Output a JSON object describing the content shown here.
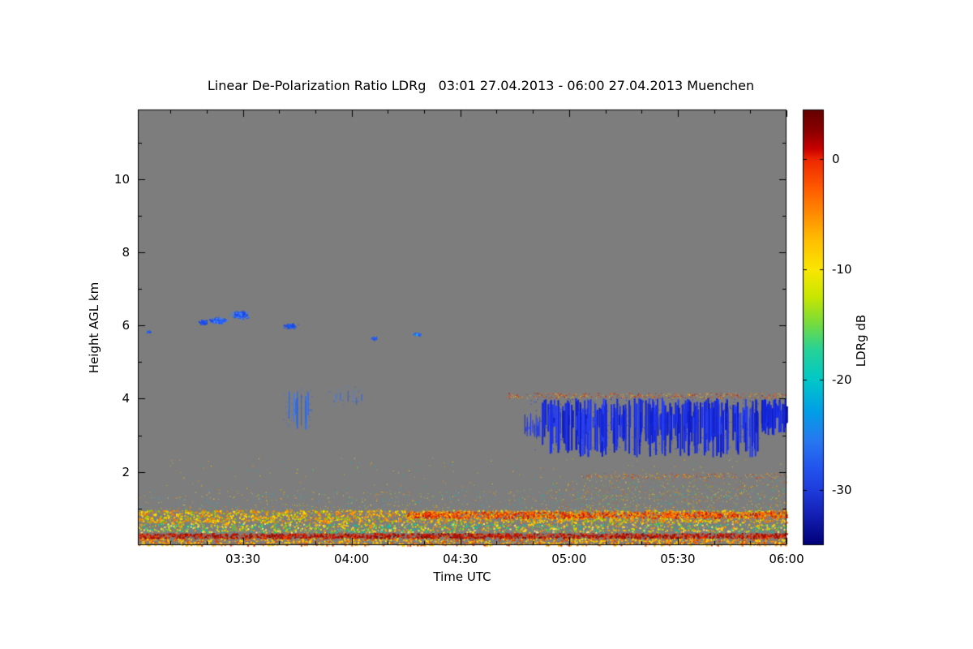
{
  "page": {
    "background": "#ffffff"
  },
  "chart_data": {
    "type": "heatmap",
    "title": "Linear De-Polarization Ratio LDRg   03:01 27.04.2013 - 06:00 27.04.2013 Muenchen",
    "xlabel": "Time UTC",
    "ylabel": "Height AGL km",
    "colorbar_label": "LDRg dB",
    "background_color": "#7d7d7d",
    "frame_color": "#000000",
    "x_axis": {
      "start_minutes": 181,
      "end_minutes": 360,
      "minor_step_minutes": 10,
      "ticks": [
        {
          "minutes": 210,
          "label": "03:30"
        },
        {
          "minutes": 240,
          "label": "04:00"
        },
        {
          "minutes": 270,
          "label": "04:30"
        },
        {
          "minutes": 300,
          "label": "05:00"
        },
        {
          "minutes": 330,
          "label": "05:30"
        },
        {
          "minutes": 360,
          "label": "06:00"
        }
      ]
    },
    "y_axis": {
      "min": 0,
      "max": 11.9,
      "ticks": [
        2,
        4,
        6,
        8,
        10
      ],
      "minor_step": 1
    },
    "colorbar": {
      "min": -35,
      "max": 4.5,
      "ticks": [
        0,
        -10,
        -20,
        -30
      ],
      "gradient": [
        {
          "pos": 0.0,
          "color": "#640000"
        },
        {
          "pos": 0.05,
          "color": "#8c0000"
        },
        {
          "pos": 0.09,
          "color": "#c80000"
        },
        {
          "pos": 0.115,
          "color": "#ee2800"
        },
        {
          "pos": 0.18,
          "color": "#ff5a00"
        },
        {
          "pos": 0.24,
          "color": "#ff8c00"
        },
        {
          "pos": 0.3,
          "color": "#ffbe00"
        },
        {
          "pos": 0.367,
          "color": "#fae600"
        },
        {
          "pos": 0.43,
          "color": "#c8e600"
        },
        {
          "pos": 0.49,
          "color": "#78dc3c"
        },
        {
          "pos": 0.55,
          "color": "#28d296"
        },
        {
          "pos": 0.62,
          "color": "#00c8c8"
        },
        {
          "pos": 0.69,
          "color": "#00a0e6"
        },
        {
          "pos": 0.76,
          "color": "#2878f0"
        },
        {
          "pos": 0.82,
          "color": "#2355ee"
        },
        {
          "pos": 0.873,
          "color": "#1e3cdc"
        },
        {
          "pos": 0.93,
          "color": "#1420b4"
        },
        {
          "pos": 1.0,
          "color": "#000078"
        }
      ]
    },
    "features": [
      {
        "type": "speckle",
        "name": "ground-bottom-mix",
        "t": [
          181,
          360
        ],
        "h": [
          0.0,
          0.2
        ],
        "count": 1500,
        "size": 2,
        "colors": [
          "#ffb400",
          "#ff7800",
          "#ffe000",
          "#e63c00",
          "#ffd200"
        ]
      },
      {
        "type": "speckle",
        "name": "ground-red-line",
        "t": [
          181,
          360
        ],
        "h": [
          0.2,
          0.33
        ],
        "count": 2200,
        "size": 2,
        "colors": [
          "#d21400",
          "#aa0a00",
          "#f04600",
          "#8c0a00"
        ]
      },
      {
        "type": "speckle",
        "name": "ground-yellow-band",
        "t": [
          181,
          360
        ],
        "h": [
          0.36,
          0.6
        ],
        "count": 1500,
        "size": 2,
        "colors": [
          "#ffd200",
          "#ffe46e",
          "#c8dc00",
          "#ff9600",
          "#64c832",
          "#00c8a0"
        ]
      },
      {
        "type": "speckle",
        "name": "main-aerosol-band",
        "t": [
          181,
          360
        ],
        "h": [
          0.62,
          0.97
        ],
        "count": 2800,
        "size": 2,
        "colors": [
          "#ffc800",
          "#ff9600",
          "#ffe000",
          "#ff7800",
          "#96d200"
        ]
      },
      {
        "type": "speckle",
        "name": "aerosol-band-intense-right",
        "t": [
          255,
          360
        ],
        "h": [
          0.75,
          0.92
        ],
        "count": 1400,
        "size": 2,
        "colors": [
          "#ff6400",
          "#e62800",
          "#c81400",
          "#ff9600"
        ]
      },
      {
        "type": "speckle",
        "name": "above-band-sparse",
        "t": [
          181,
          360
        ],
        "h": [
          0.97,
          1.5
        ],
        "count": 650,
        "size": 1,
        "colors": [
          "#ffd200",
          "#96c832",
          "#00c8b4",
          "#ff9600",
          "#50a0dc"
        ]
      },
      {
        "type": "speckle",
        "name": "right-mid-speckle",
        "t": [
          295,
          360
        ],
        "h": [
          0.95,
          1.8
        ],
        "count": 480,
        "size": 1,
        "colors": [
          "#00c8b4",
          "#ffd200",
          "#ff9600",
          "#64c832",
          "#e65000"
        ]
      },
      {
        "type": "speckle",
        "name": "very-sparse-low",
        "t": [
          181,
          360
        ],
        "h": [
          1.5,
          2.4
        ],
        "count": 140,
        "size": 1,
        "colors": [
          "#ffd200",
          "#ff9600",
          "#00c8b4",
          "#96c832"
        ]
      },
      {
        "type": "speckle",
        "name": "line-19km",
        "t": [
          303,
          360
        ],
        "h": [
          1.83,
          1.97
        ],
        "count": 210,
        "size": 1,
        "colors": [
          "#ff9600",
          "#ffc800",
          "#e65000",
          "#d22800"
        ]
      },
      {
        "type": "cluster",
        "name": "cirrus-blue-1",
        "t": 199,
        "h": 6.1,
        "dt": 1.5,
        "dh": 0.08,
        "count": 60,
        "size": 2,
        "colors": [
          "#1e50f0",
          "#2864f0",
          "#1446e6"
        ]
      },
      {
        "type": "cluster",
        "name": "cirrus-blue-2",
        "t": 203,
        "h": 6.15,
        "dt": 3,
        "dh": 0.1,
        "count": 150,
        "size": 2,
        "colors": [
          "#1e50f0",
          "#2864f0",
          "#1446e6",
          "#4682f5"
        ]
      },
      {
        "type": "cluster",
        "name": "cirrus-blue-3",
        "t": 209,
        "h": 6.3,
        "dt": 3,
        "dh": 0.13,
        "count": 210,
        "size": 2,
        "colors": [
          "#1e50f0",
          "#2864f0",
          "#1446e6",
          "#4682f5"
        ]
      },
      {
        "type": "cluster",
        "name": "cirrus-blue-4",
        "t": 223,
        "h": 6.0,
        "dt": 2.5,
        "dh": 0.09,
        "count": 90,
        "size": 2,
        "colors": [
          "#1e50f0",
          "#2864f0",
          "#1446e6"
        ]
      },
      {
        "type": "cluster",
        "name": "speck-0305",
        "t": 184,
        "h": 5.85,
        "dt": 0.7,
        "dh": 0.04,
        "count": 10,
        "size": 2,
        "colors": [
          "#2864f0",
          "#1e50f0"
        ]
      },
      {
        "type": "cluster",
        "name": "speck-0406",
        "t": 246,
        "h": 5.65,
        "dt": 1.2,
        "dh": 0.07,
        "count": 22,
        "size": 2,
        "colors": [
          "#2864f0",
          "#1e50f0"
        ]
      },
      {
        "type": "cluster",
        "name": "speck-0419",
        "t": 258,
        "h": 5.78,
        "dt": 1.8,
        "dh": 0.05,
        "count": 30,
        "size": 2,
        "colors": [
          "#2864f0",
          "#1e50f0",
          "#30b4e6"
        ]
      },
      {
        "type": "vstreaks",
        "name": "wisp-0344",
        "t": [
          222,
          228
        ],
        "h_top": [
          3.8,
          4.25
        ],
        "h_bot": [
          3.15,
          3.6
        ],
        "count": 12,
        "width": 1,
        "colors": [
          "#3c78f0",
          "#2864e6"
        ]
      },
      {
        "type": "speckle",
        "name": "wisp-0344-speckle",
        "t": [
          221,
          229
        ],
        "h": [
          3.2,
          4.3
        ],
        "count": 60,
        "size": 1,
        "colors": [
          "#3c78f0",
          "#2864e6"
        ]
      },
      {
        "type": "vstreaks",
        "name": "wisp-0356",
        "t": [
          233,
          243
        ],
        "h_top": [
          4.0,
          4.3
        ],
        "h_bot": [
          3.75,
          4.0
        ],
        "count": 7,
        "width": 1,
        "colors": [
          "#4682f5",
          "#2864e6"
        ]
      },
      {
        "type": "speckle",
        "name": "wisp-0356-speckle",
        "t": [
          233,
          244
        ],
        "h": [
          3.8,
          4.35
        ],
        "count": 30,
        "size": 1,
        "colors": [
          "#4682f5",
          "#2864e6"
        ]
      },
      {
        "type": "vstreaks",
        "name": "cloud-streaks-start",
        "t": [
          287,
          292
        ],
        "h_top": [
          3.2,
          3.6
        ],
        "h_bot": [
          2.9,
          3.2
        ],
        "count": 18,
        "width": 1,
        "colors": [
          "#1e32e6",
          "#2840f0"
        ]
      },
      {
        "type": "vstreaks",
        "name": "cloud-streaks-main",
        "t": [
          292,
          352
        ],
        "h_top": [
          3.45,
          4.02
        ],
        "h_bot": [
          2.4,
          3.35
        ],
        "count": 240,
        "width": 2,
        "colors": [
          "#1428dc",
          "#1e32e6",
          "#0f1ec8",
          "#2840f0"
        ]
      },
      {
        "type": "vstreaks",
        "name": "cloud-streaks-right",
        "t": [
          353,
          360
        ],
        "h_top": [
          3.6,
          4.0
        ],
        "h_bot": [
          3.0,
          3.55
        ],
        "count": 45,
        "width": 2,
        "colors": [
          "#1428dc",
          "#1e32e6",
          "#0f1ec8"
        ]
      },
      {
        "type": "speckle",
        "name": "cloud-speckle",
        "t": [
          289,
          353
        ],
        "h": [
          2.6,
          4.05
        ],
        "count": 320,
        "size": 1,
        "colors": [
          "#1e32e6",
          "#2840f0",
          "#1428dc"
        ]
      },
      {
        "type": "speckle",
        "name": "cloud-top-orange",
        "t": [
          283,
          360
        ],
        "h": [
          4.02,
          4.16
        ],
        "count": 380,
        "size": 1,
        "colors": [
          "#ff5a00",
          "#e62800",
          "#ffc800",
          "#c81400",
          "#ff9600"
        ]
      }
    ]
  }
}
